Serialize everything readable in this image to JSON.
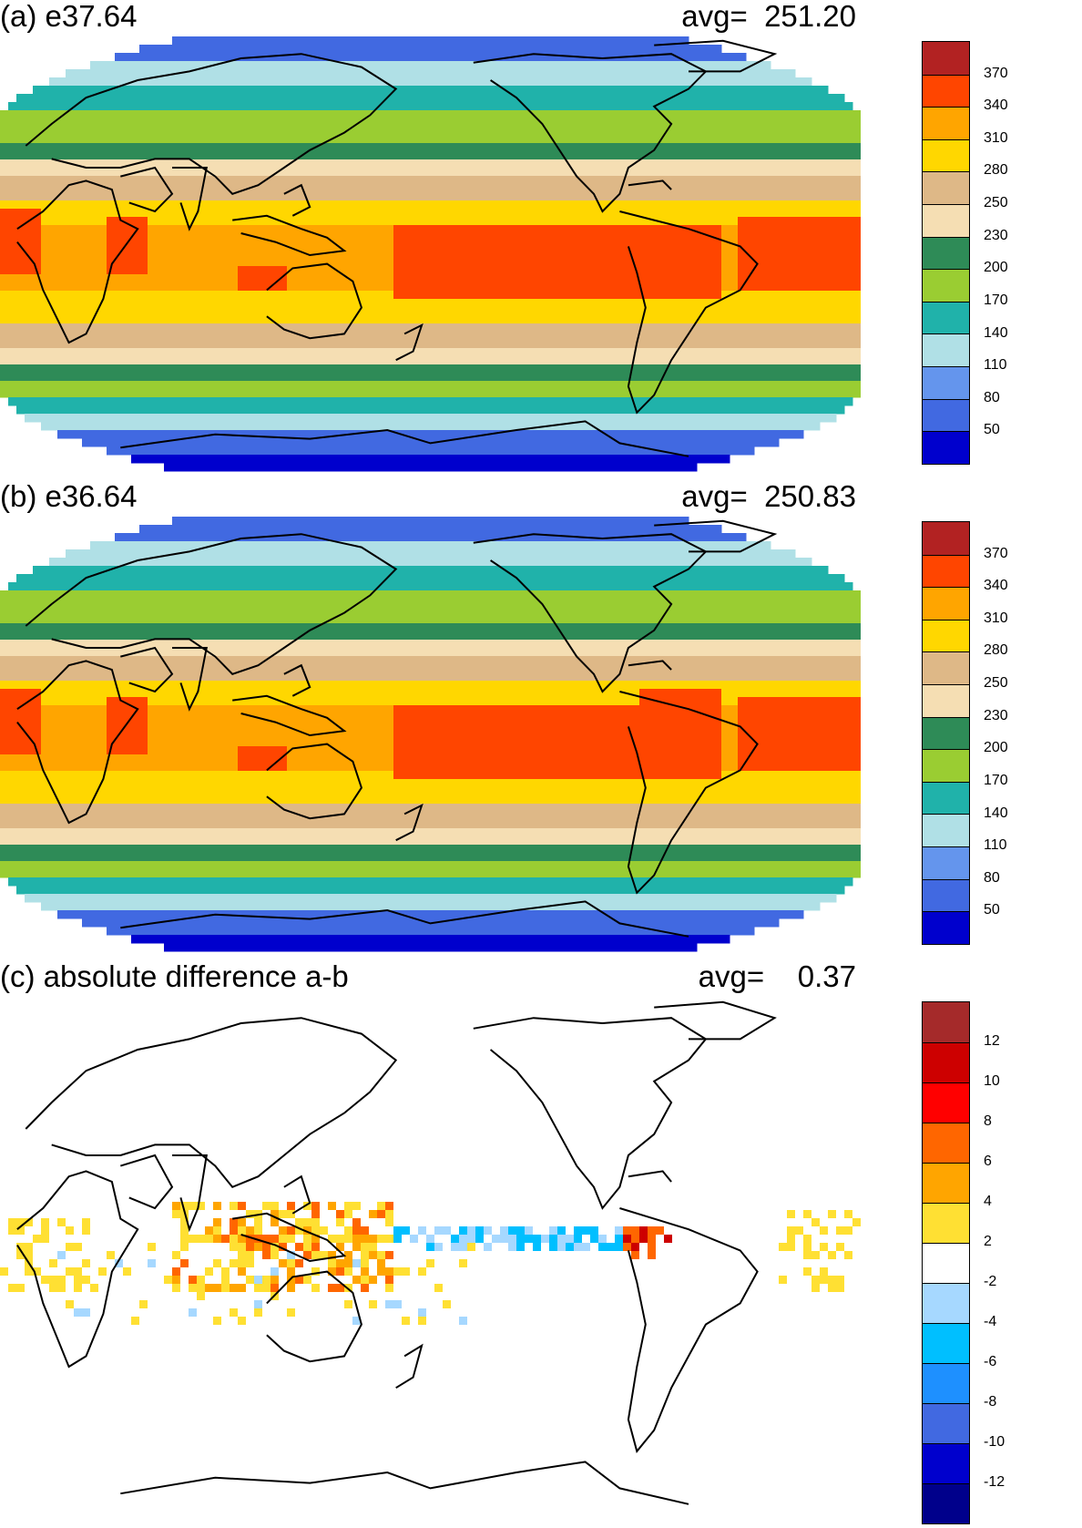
{
  "panels": [
    {
      "id": "a",
      "title": "(a) e37.64",
      "avg_label": "avg=  251.20",
      "colorbar": {
        "colors": [
          "#b22222",
          "#ff4500",
          "#ffa500",
          "#ffd700",
          "#deb887",
          "#f5deb3",
          "#2e8b57",
          "#9acd32",
          "#20b2aa",
          "#b0e0e6",
          "#6495ed",
          "#4169e1",
          "#0000cd"
        ],
        "labels": [
          "370",
          "340",
          "310",
          "280",
          "250",
          "230",
          "200",
          "170",
          "140",
          "110",
          "80",
          "50"
        ]
      }
    },
    {
      "id": "b",
      "title": "(b) e36.64",
      "avg_label": "avg=  250.83",
      "colorbar": {
        "colors": [
          "#b22222",
          "#ff4500",
          "#ffa500",
          "#ffd700",
          "#deb887",
          "#f5deb3",
          "#2e8b57",
          "#9acd32",
          "#20b2aa",
          "#b0e0e6",
          "#6495ed",
          "#4169e1",
          "#0000cd"
        ],
        "labels": [
          "370",
          "340",
          "310",
          "280",
          "250",
          "230",
          "200",
          "170",
          "140",
          "110",
          "80",
          "50"
        ]
      }
    },
    {
      "id": "c",
      "title": "(c) absolute difference a-b",
      "avg_label": "avg=    0.37",
      "colorbar": {
        "colors": [
          "#a52a2a",
          "#cd0000",
          "#ff0000",
          "#ff6600",
          "#ffa500",
          "#ffe033",
          "#ffffff",
          "#a6d8ff",
          "#00bfff",
          "#1e90ff",
          "#4169e1",
          "#0000cd",
          "#00008b"
        ],
        "labels": [
          "12",
          "10",
          "8",
          "6",
          "4",
          "2",
          "-2",
          "-4",
          "-6",
          "-8",
          "-10",
          "-12"
        ]
      }
    }
  ]
}
